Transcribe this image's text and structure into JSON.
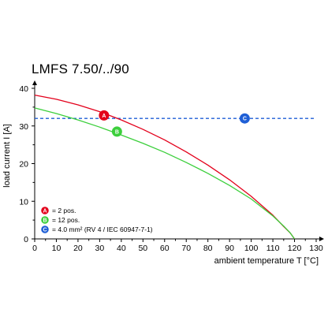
{
  "chart_data": {
    "type": "line",
    "title": "LMFS 7.50/../90",
    "xlabel": "ambient temperature T [°C]",
    "ylabel": "load current I [A]",
    "xlim": [
      0,
      130
    ],
    "ylim": [
      0,
      40
    ],
    "xticks": [
      "0",
      "10",
      "20",
      "30",
      "40",
      "50",
      "60",
      "70",
      "80",
      "90",
      "100",
      "110",
      "120",
      "130"
    ],
    "yticks": [
      "0",
      "10",
      "20",
      "30",
      "40"
    ],
    "grid": false,
    "series": [
      {
        "id": "A",
        "name": "= 2 pos.",
        "color": "#e3001b",
        "style": "solid",
        "x": [
          0,
          10,
          20,
          30,
          40,
          50,
          60,
          70,
          80,
          90,
          100,
          110,
          115,
          118,
          120
        ],
        "y": [
          38.2,
          37.1,
          35.6,
          33.8,
          31.6,
          29.1,
          26.3,
          23.1,
          19.6,
          15.7,
          11.3,
          6.3,
          3.3,
          1.6,
          0
        ]
      },
      {
        "id": "B",
        "name": "= 12 pos.",
        "color": "#3ccf3c",
        "style": "solid",
        "x": [
          0,
          10,
          20,
          30,
          40,
          50,
          60,
          70,
          80,
          90,
          100,
          110,
          115,
          118,
          120
        ],
        "y": [
          34.8,
          33.3,
          31.6,
          29.7,
          27.6,
          25.4,
          23.0,
          20.3,
          17.4,
          14.2,
          10.6,
          6.1,
          3.4,
          1.6,
          0
        ]
      },
      {
        "id": "C",
        "name": "= 4.0 mm² (RV 4 / IEC 60947-7-1)",
        "color": "#1f5fd6",
        "style": "dashed",
        "x": [
          0,
          130
        ],
        "y": [
          32,
          32
        ]
      }
    ],
    "markers": [
      {
        "label": "A",
        "color": "#e3001b",
        "x": 32,
        "y": 32.8
      },
      {
        "label": "B",
        "color": "#3ccf3c",
        "x": 38,
        "y": 28.5
      },
      {
        "label": "C",
        "color": "#1f5fd6",
        "x": 97,
        "y": 32
      }
    ],
    "legend": {
      "placement": "bottom-left"
    }
  }
}
